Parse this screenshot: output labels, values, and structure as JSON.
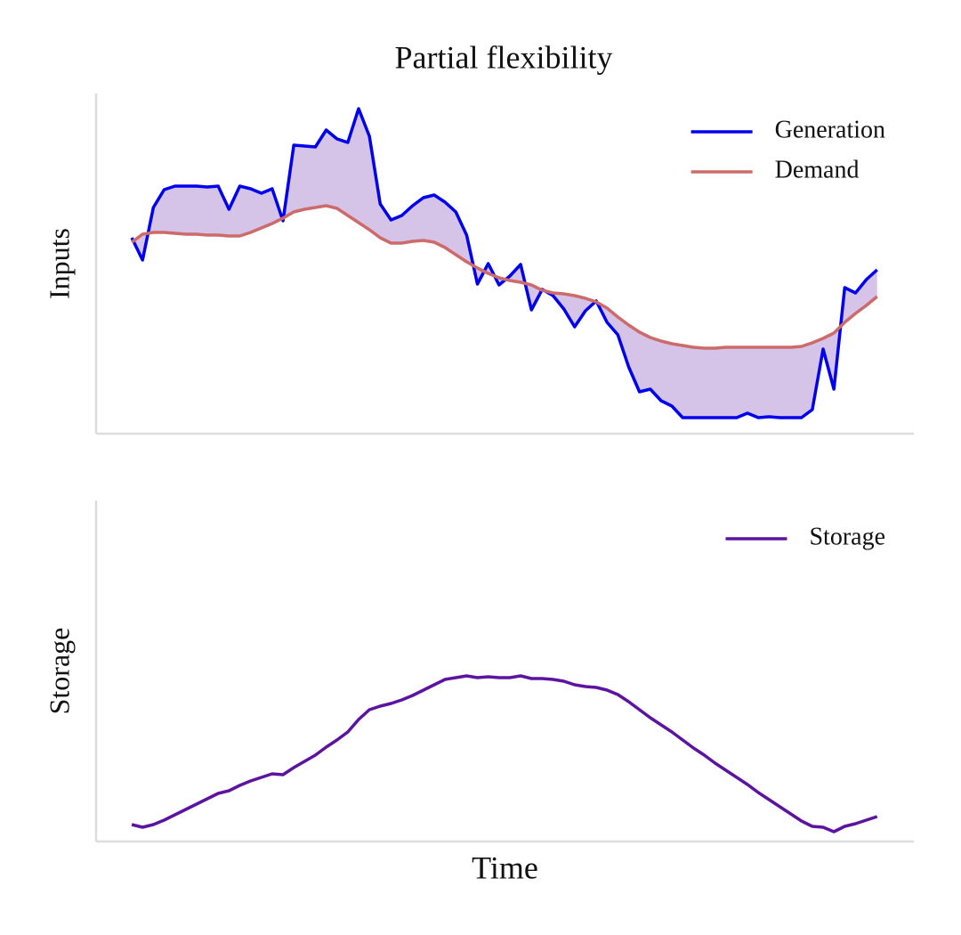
{
  "chart_data": [
    {
      "type": "line",
      "title": "Partial flexibility",
      "ylabel": "Inputs",
      "xlim": [
        -3.3,
        72.4
      ],
      "ylim": [
        0,
        382
      ],
      "legend": "upper right",
      "fill_between": {
        "color": "#d6c3e8"
      },
      "series": [
        {
          "name": "Generation",
          "color": "#0000ee",
          "values": [
            220,
            195,
            254,
            274,
            278,
            278,
            278,
            277,
            278,
            252,
            278,
            275,
            270,
            275,
            239,
            324,
            323,
            322,
            341,
            331,
            327,
            365,
            334,
            258,
            240,
            245,
            256,
            265,
            268,
            260,
            249,
            223,
            168,
            191,
            167,
            177,
            190,
            139,
            162,
            155,
            140,
            120,
            138,
            149,
            125,
            111,
            75,
            47,
            50,
            37,
            31,
            18,
            18,
            18,
            18,
            18,
            18,
            23,
            18,
            19,
            18,
            18,
            18,
            27,
            95,
            50,
            164,
            158,
            173,
            184
          ]
        },
        {
          "name": "Demand",
          "color": "#cd6a6a",
          "values": [
            215,
            224,
            226,
            226,
            225,
            224,
            224,
            223,
            223,
            222,
            222,
            226,
            231,
            236,
            242,
            249,
            252,
            254,
            256,
            253,
            245,
            237,
            229,
            220,
            214,
            214,
            216,
            217,
            215,
            209,
            201,
            193,
            186,
            180,
            175,
            172,
            170,
            167,
            161,
            158,
            157,
            155,
            152,
            148,
            141,
            131,
            122,
            114,
            108,
            104,
            101,
            99,
            97,
            96,
            96,
            97,
            97,
            97,
            97,
            97,
            97,
            97,
            98,
            102,
            107,
            113,
            125,
            135,
            144,
            154
          ]
        }
      ]
    },
    {
      "type": "line",
      "ylabel": "Storage",
      "xlabel": "Time",
      "xlim": [
        -3.3,
        72.4
      ],
      "ylim": [
        0,
        383
      ],
      "legend": "upper right",
      "series": [
        {
          "name": "Storage",
          "color": "#5c14a0",
          "values": [
            19,
            16,
            19,
            24,
            30,
            36,
            42,
            48,
            54,
            57,
            63,
            68,
            72,
            76,
            75,
            83,
            90,
            97,
            106,
            114,
            123,
            137,
            148,
            152,
            155,
            159,
            164,
            170,
            176,
            182,
            184,
            186,
            184,
            185,
            184,
            184,
            186,
            183,
            183,
            182,
            180,
            176,
            174,
            173,
            170,
            165,
            157,
            148,
            139,
            131,
            123,
            114,
            105,
            97,
            88,
            80,
            72,
            64,
            55,
            47,
            39,
            31,
            23,
            17,
            16,
            11,
            17,
            20,
            24,
            28
          ]
        }
      ]
    }
  ]
}
